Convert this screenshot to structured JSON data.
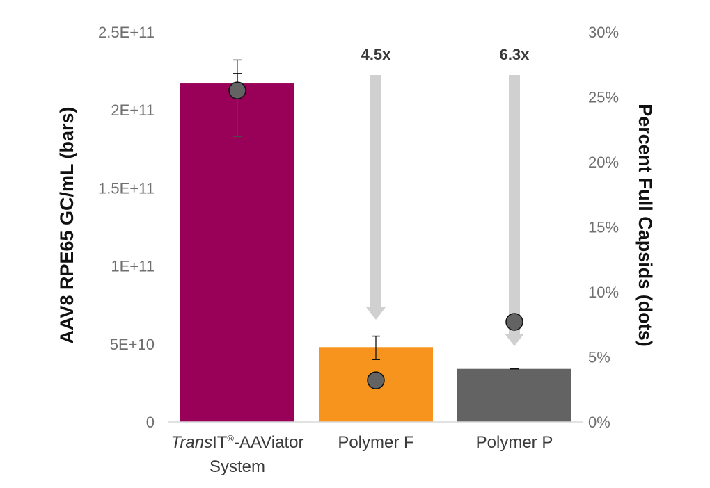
{
  "chart_data": {
    "type": "bar",
    "categories": [
      {
        "parts": [
          {
            "text": "Trans",
            "italic": true
          },
          {
            "text": "IT"
          },
          {
            "text": "®",
            "sup": true
          },
          {
            "text": "-AAViator"
          }
        ],
        "line2": "System"
      },
      {
        "parts": [
          {
            "text": "Polymer F"
          }
        ],
        "line2": ""
      },
      {
        "parts": [
          {
            "text": "Polymer P"
          }
        ],
        "line2": ""
      }
    ],
    "bar_colors": [
      "#990057",
      "#f7941d",
      "#636363"
    ],
    "bars": {
      "values": [
        217000000000.0,
        48000000000.0,
        34000000000.0
      ],
      "error_high": [
        232000000000.0,
        55000000000.0,
        34000000000.0
      ],
      "error_low": [
        183000000000.0,
        40000000000.0,
        34000000000.0
      ]
    },
    "dots": {
      "values": [
        25.5,
        3.2,
        7.7
      ],
      "error_high": [
        26.8,
        null,
        null
      ],
      "error_low": [
        25.5,
        null,
        null
      ],
      "color": "#636363"
    },
    "y_left": {
      "label": "AAV8 RPE65 GC/mL (bars)",
      "ylim": [
        0,
        250000000000.0
      ],
      "ticks": [
        0,
        50000000000.0,
        100000000000.0,
        150000000000.0,
        200000000000.0,
        250000000000.0
      ],
      "tick_labels": [
        "0",
        "5E+10",
        "1E+11",
        "1.5E+11",
        "2E+11",
        "2.5E+11"
      ]
    },
    "y_right": {
      "label": "Percent Full Capsids (dots)",
      "ylim": [
        0,
        30
      ],
      "ticks": [
        0,
        5,
        10,
        15,
        20,
        25,
        30
      ],
      "tick_labels": [
        "0%",
        "5%",
        "10%",
        "15%",
        "20%",
        "25%",
        "30%"
      ]
    },
    "annotations": [
      {
        "category_index": 1,
        "text": "4.5x",
        "arrow": "down"
      },
      {
        "category_index": 2,
        "text": "6.3x",
        "arrow": "down"
      }
    ],
    "arrow_color": "#d0d0d0",
    "grid": false
  }
}
